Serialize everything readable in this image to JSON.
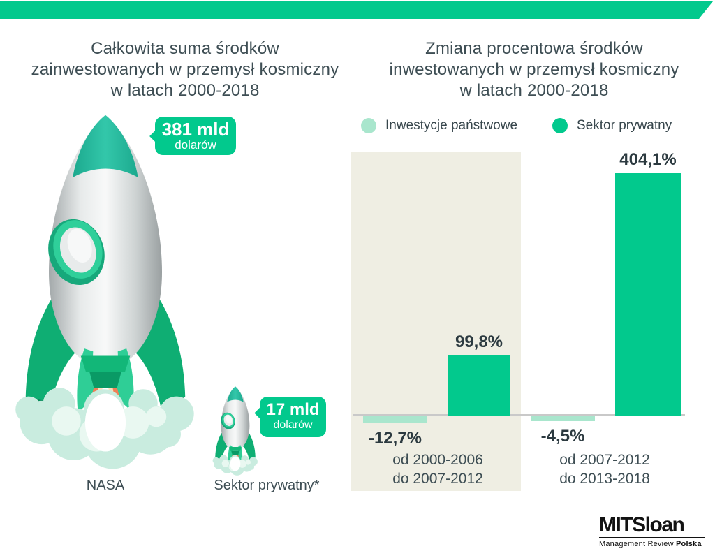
{
  "page": {
    "background": "#ffffff",
    "ribbon_color": "#02c98d"
  },
  "left": {
    "title_lines": [
      "Całkowita suma środków",
      "zainwestowanych w przemysł kosmiczny",
      "w latach 2000-2018"
    ],
    "nasa_badge": {
      "value": "381 mld",
      "unit": "dolarów"
    },
    "nasa_label": "NASA",
    "private_badge": {
      "value": "17 mld",
      "unit": "dolarów"
    },
    "private_label": "Sektor prywatny*"
  },
  "right": {
    "title_lines": [
      "Zmiana procentowa środków",
      "inwestowanych w przemysł kosmiczny",
      "w latach 2000-2018"
    ]
  },
  "chart_data": {
    "type": "bar",
    "title": "Zmiana procentowa środków inwestowanych w przemysł kosmiczny w latach 2000-2018",
    "categories": [
      "od 2000-2006 do 2007-2012",
      "od 2007-2012 do 2013-2018"
    ],
    "categories_lines": [
      [
        "od 2000-2006",
        "do 2007-2012"
      ],
      [
        "od 2007-2012",
        "do 2013-2018"
      ]
    ],
    "series": [
      {
        "name": "Inwestycje państwowe",
        "color": "#a9e6cd",
        "values": [
          -12.7,
          -4.5
        ]
      },
      {
        "name": "Sektor prywatny",
        "color": "#02c98d",
        "values": [
          99.8,
          404.1
        ]
      }
    ],
    "value_labels": [
      [
        "-12,7%",
        "-4,5%"
      ],
      [
        "99,8%",
        "404,1%"
      ]
    ],
    "unit": "%",
    "ylim": [
      -50,
      450
    ],
    "grid": false,
    "legend_position": "top",
    "plot_background": {
      "group1": "#efeee3",
      "group2": "#ffffff"
    },
    "axis_color": "#c9c9c9"
  },
  "branding": {
    "logo_main": "MITSloan",
    "logo_sub": "Management Review",
    "logo_sub_bold": "Polska"
  },
  "colors": {
    "accent_green": "#02c98d",
    "light_green": "#a9e6cd",
    "nose_teal": "#28bfa3",
    "panel_beige": "#efeee3",
    "title_text": "#3e4e54",
    "value_text": "#2c3a40",
    "axis_gray": "#c9c9c9",
    "badge_text": "#ffffff",
    "logo_black": "#121212"
  }
}
